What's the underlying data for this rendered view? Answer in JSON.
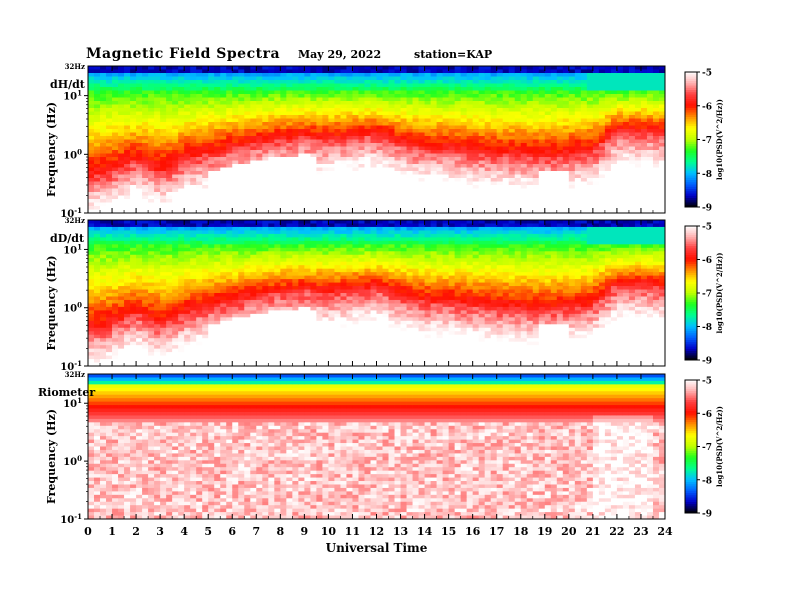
{
  "header": {
    "title": "Magnetic Field Spectra",
    "date": "May 29, 2022",
    "station": "station=KAP"
  },
  "chart_data": [
    {
      "type": "heatmap",
      "panel_label": "dH/dt",
      "ylabel": "Frequency (Hz)",
      "xlabel": "",
      "x_ticks": [
        "0",
        "1",
        "2",
        "3",
        "4",
        "5",
        "6",
        "7",
        "8",
        "9",
        "10",
        "11",
        "12",
        "13",
        "14",
        "15",
        "16",
        "17",
        "18",
        "19",
        "20",
        "21",
        "22",
        "23",
        "24"
      ],
      "x_range": [
        0,
        24
      ],
      "y_scale": "log",
      "y_range": [
        0.1,
        32
      ],
      "y_top_label": "32Hz",
      "y_ticks": [
        {
          "base": "10",
          "exp": "1",
          "value": 10
        },
        {
          "base": "10",
          "exp": "0",
          "value": 1
        },
        {
          "base": "10",
          "exp": "-1",
          "value": 0.1
        }
      ],
      "colorbar": {
        "label": "log10(PSD(V^2/Hz))",
        "range": [
          -9,
          -5
        ],
        "ticks": [
          "-5",
          "-6",
          "-7",
          "-8",
          "-9"
        ]
      },
      "profile_hours": [
        0,
        1,
        2,
        3,
        4,
        5,
        6,
        7,
        8,
        9,
        10,
        11,
        12,
        13,
        14,
        15,
        16,
        17,
        18,
        19,
        20,
        21,
        22,
        23,
        24
      ],
      "profile_log10f": [
        -0.4,
        -0.3,
        -0.1,
        -0.3,
        -0.1,
        0.0,
        0.1,
        0.2,
        0.25,
        0.3,
        0.25,
        0.3,
        0.35,
        0.2,
        0.1,
        0.1,
        0.05,
        0.0,
        0.0,
        -0.05,
        0.0,
        0.05,
        0.4,
        0.4,
        0.35
      ]
    },
    {
      "type": "heatmap",
      "panel_label": "dD/dt",
      "ylabel": "Frequency (Hz)",
      "xlabel": "",
      "x_ticks": [
        "0",
        "1",
        "2",
        "3",
        "4",
        "5",
        "6",
        "7",
        "8",
        "9",
        "10",
        "11",
        "12",
        "13",
        "14",
        "15",
        "16",
        "17",
        "18",
        "19",
        "20",
        "21",
        "22",
        "23",
        "24"
      ],
      "x_range": [
        0,
        24
      ],
      "y_scale": "log",
      "y_range": [
        0.1,
        32
      ],
      "y_top_label": "32Hz",
      "y_ticks": [
        {
          "base": "10",
          "exp": "1",
          "value": 10
        },
        {
          "base": "10",
          "exp": "0",
          "value": 1
        },
        {
          "base": "10",
          "exp": "-1",
          "value": 0.1
        }
      ],
      "colorbar": {
        "label": "log10(PSD(V^2/Hz))",
        "range": [
          -9,
          -5
        ],
        "ticks": [
          "-5",
          "-6",
          "-7",
          "-8",
          "-9"
        ]
      },
      "profile_hours": [
        0,
        1,
        2,
        3,
        4,
        5,
        6,
        7,
        8,
        9,
        10,
        11,
        12,
        13,
        14,
        15,
        16,
        17,
        18,
        19,
        20,
        21,
        22,
        23,
        24
      ],
      "profile_log10f": [
        -0.4,
        -0.3,
        -0.1,
        -0.3,
        -0.1,
        0.0,
        0.1,
        0.2,
        0.25,
        0.3,
        0.25,
        0.3,
        0.35,
        0.2,
        0.1,
        0.1,
        0.05,
        0.0,
        0.0,
        -0.05,
        0.0,
        0.05,
        0.4,
        0.4,
        0.35
      ]
    },
    {
      "type": "heatmap",
      "panel_label": "Riometer",
      "ylabel": "Frequency (Hz)",
      "xlabel": "Universal Time",
      "x_ticks": [
        "0",
        "1",
        "2",
        "3",
        "4",
        "5",
        "6",
        "7",
        "8",
        "9",
        "10",
        "11",
        "12",
        "13",
        "14",
        "15",
        "16",
        "17",
        "18",
        "19",
        "20",
        "21",
        "22",
        "23",
        "24"
      ],
      "x_range": [
        0,
        24
      ],
      "y_scale": "log",
      "y_range": [
        0.1,
        32
      ],
      "y_top_label": "32Hz",
      "y_ticks": [
        {
          "base": "10",
          "exp": "1",
          "value": 10
        },
        {
          "base": "10",
          "exp": "0",
          "value": 1
        },
        {
          "base": "10",
          "exp": "-1",
          "value": 0.1
        }
      ],
      "colorbar": {
        "label": "log10(PSD(V^2/Hz))",
        "range": [
          -9,
          -5
        ],
        "ticks": [
          "-5",
          "-6",
          "-7",
          "-8",
          "-9"
        ]
      },
      "profile_hours": [
        0,
        24
      ],
      "profile_log10f": [
        0.85,
        0.85
      ]
    }
  ],
  "colors": {
    "colormap": [
      "#000000",
      "#0000c8",
      "#0060ff",
      "#00c0ff",
      "#00ff90",
      "#20ff20",
      "#c0ff00",
      "#ffff00",
      "#ff9000",
      "#ff1000",
      "#ff4040",
      "#ffb0b0",
      "#ffffff"
    ]
  }
}
